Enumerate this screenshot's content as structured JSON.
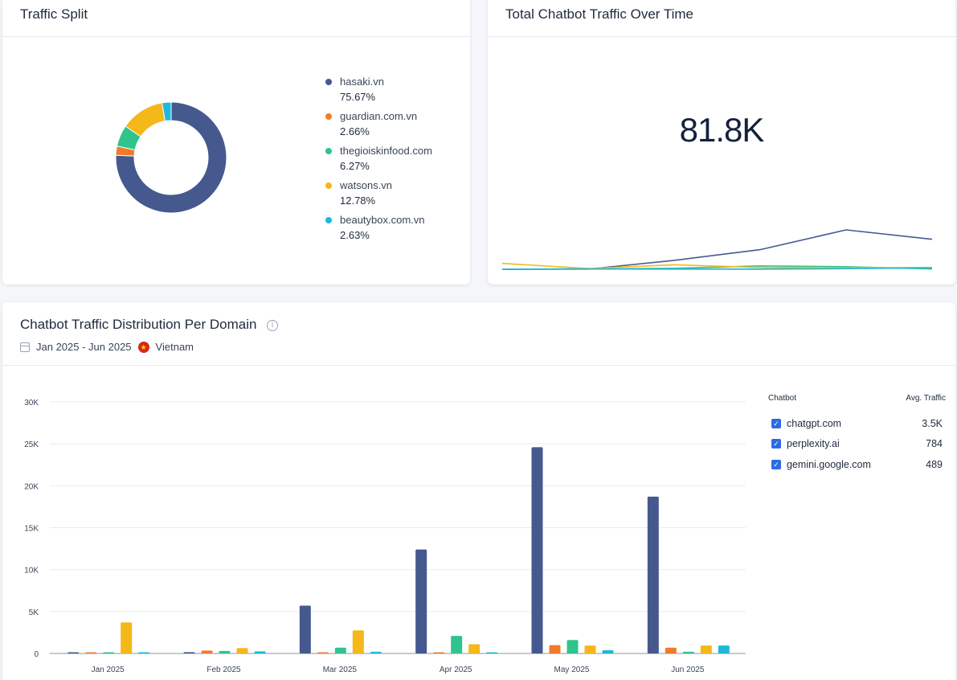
{
  "traffic_split": {
    "title": "Traffic Split",
    "items": [
      {
        "domain": "hasaki.vn",
        "pct": "75.67%",
        "value": 75.67,
        "color": "#45598f"
      },
      {
        "domain": "guardian.com.vn",
        "pct": "2.66%",
        "value": 2.66,
        "color": "#f07b2b"
      },
      {
        "domain": "thegioiskinfood.com",
        "pct": "6.27%",
        "value": 6.27,
        "color": "#2fc48d"
      },
      {
        "domain": "watsons.vn",
        "pct": "12.78%",
        "value": 12.78,
        "color": "#f5b819"
      },
      {
        "domain": "beautybox.com.vn",
        "pct": "2.63%",
        "value": 2.63,
        "color": "#1fb8d9"
      }
    ]
  },
  "over_time": {
    "title": "Total Chatbot Traffic Over Time",
    "total": "81.8K"
  },
  "distribution": {
    "title": "Chatbot Traffic Distribution Per Domain",
    "info_icon": "i",
    "date_range": "Jan 2025 - Jun 2025",
    "country": "Vietnam",
    "table": {
      "col_chatbot": "Chatbot",
      "col_avg": "Avg. Traffic",
      "rows": [
        {
          "name": "chatgpt.com",
          "value": "3.5K"
        },
        {
          "name": "perplexity.ai",
          "value": "784"
        },
        {
          "name": "gemini.google.com",
          "value": "489"
        }
      ]
    }
  },
  "chart_data": [
    {
      "type": "pie",
      "title": "Traffic Split",
      "labels": [
        "hasaki.vn",
        "guardian.com.vn",
        "thegioiskinfood.com",
        "watsons.vn",
        "beautybox.com.vn"
      ],
      "values": [
        75.67,
        2.66,
        6.27,
        12.78,
        2.63
      ],
      "colors": [
        "#45598f",
        "#f07b2b",
        "#2fc48d",
        "#f5b819",
        "#1fb8d9"
      ],
      "legend": "right"
    },
    {
      "type": "line",
      "title": "Total Chatbot Traffic Over Time",
      "x": [
        "Jan 2025",
        "Feb 2025",
        "Mar 2025",
        "Apr 2025",
        "May 2025",
        "Jun 2025"
      ],
      "ylim": [
        0,
        30000
      ],
      "series": [
        {
          "values": [
            0,
            100,
            5600,
            12300,
            24700,
            18800
          ],
          "color": "#45598f"
        },
        {
          "values": [
            0,
            200,
            100,
            100,
            1000,
            600
          ],
          "color": "#f07b2b"
        },
        {
          "values": [
            0,
            200,
            600,
            2100,
            1600,
            200
          ],
          "color": "#2fc48d"
        },
        {
          "values": [
            3700,
            500,
            2800,
            1100,
            1000,
            1000
          ],
          "color": "#f5b819"
        },
        {
          "values": [
            0,
            200,
            200,
            100,
            400,
            1000
          ],
          "color": "#1fb8d9"
        }
      ]
    },
    {
      "type": "bar",
      "title": "Chatbot Traffic Distribution Per Domain",
      "categories": [
        "Jan 2025",
        "Feb 2025",
        "Mar 2025",
        "Apr 2025",
        "May 2025",
        "Jun 2025"
      ],
      "ylim": [
        0,
        30000
      ],
      "yticks": [
        0,
        5000,
        10000,
        15000,
        20000,
        25000,
        30000
      ],
      "ytick_labels": [
        "0",
        "5K",
        "10K",
        "15K",
        "20K",
        "25K",
        "30K"
      ],
      "grid": true,
      "series": [
        {
          "name": "hasaki.vn",
          "color": "#45598f",
          "values": [
            0,
            150,
            5700,
            12400,
            24600,
            18700
          ]
        },
        {
          "name": "guardian.com.vn",
          "color": "#f07b2b",
          "values": [
            0,
            350,
            0,
            0,
            1000,
            700
          ]
        },
        {
          "name": "thegioiskinfood.com",
          "color": "#2fc48d",
          "values": [
            0,
            300,
            700,
            2100,
            1600,
            200
          ]
        },
        {
          "name": "watsons.vn",
          "color": "#f5b819",
          "values": [
            3700,
            650,
            2750,
            1100,
            950,
            950
          ]
        },
        {
          "name": "beautybox.com.vn",
          "color": "#1fb8d9",
          "values": [
            0,
            250,
            200,
            100,
            400,
            950
          ]
        }
      ]
    }
  ]
}
